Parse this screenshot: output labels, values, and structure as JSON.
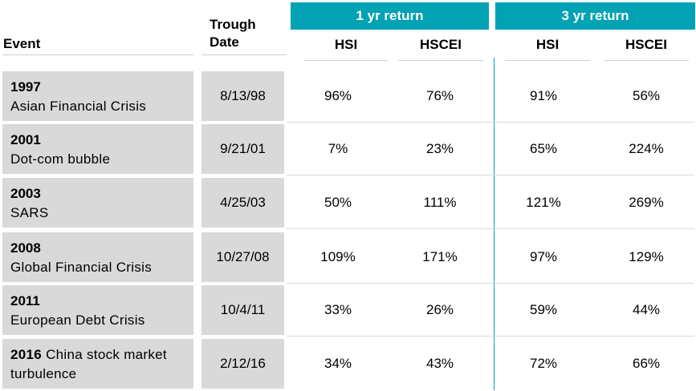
{
  "headers": {
    "event": "Event",
    "trough_line1": "Trough",
    "trough_line2": "Date",
    "group1": "1 yr return",
    "group2": "3 yr return",
    "col_hsi_1": "HSI",
    "col_hscei_1": "HSCEI",
    "col_hsi_3": "HSI",
    "col_hscei_3": "HSCEI"
  },
  "rows": [
    {
      "year": "1997",
      "name": "Asian Financial Crisis",
      "date": "8/13/98",
      "hsi_1": "96%",
      "hscei_1": "76%",
      "hsi_3": "91%",
      "hscei_3": "56%"
    },
    {
      "year": "2001",
      "name": "Dot-com bubble",
      "date": "9/21/01",
      "hsi_1": "7%",
      "hscei_1": "23%",
      "hsi_3": "65%",
      "hscei_3": "224%"
    },
    {
      "year": "2003",
      "name": "SARS",
      "date": "4/25/03",
      "hsi_1": "50%",
      "hscei_1": "111%",
      "hsi_3": "121%",
      "hscei_3": "269%"
    },
    {
      "year": "2008",
      "name": "Global Financial Crisis",
      "date": "10/27/08",
      "hsi_1": "109%",
      "hscei_1": "171%",
      "hsi_3": "97%",
      "hscei_3": "129%"
    },
    {
      "year": "2011",
      "name": "European Debt Crisis",
      "date": "10/4/11",
      "hsi_1": "33%",
      "hscei_1": "26%",
      "hsi_3": "59%",
      "hscei_3": "44%"
    },
    {
      "year": "2016",
      "name": "China stock market turbulence",
      "date": "2/12/16",
      "hsi_1": "34%",
      "hscei_1": "43%",
      "hsi_3": "72%",
      "hscei_3": "66%"
    }
  ],
  "colors": {
    "accent": "#00a2b4",
    "cell_gray": "#d9d9d9"
  }
}
